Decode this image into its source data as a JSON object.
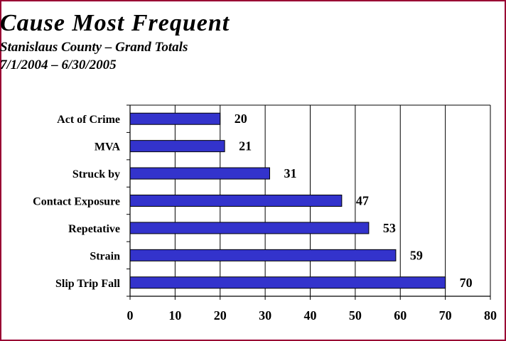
{
  "chart_data": {
    "type": "bar",
    "orientation": "horizontal",
    "title": "Cause Most Frequent",
    "subtitle": "Stanislaus County – Grand Totals",
    "subtitle2": "7/1/2004 – 6/30/2005",
    "categories": [
      "Act of Crime",
      "MVA",
      "Struck by",
      "Contact Exposure",
      "Repetative",
      "Strain",
      "Slip Trip Fall"
    ],
    "values": [
      20,
      21,
      31,
      47,
      53,
      59,
      70
    ],
    "xlim": [
      0,
      80
    ],
    "xticks": [
      0,
      10,
      20,
      30,
      40,
      50,
      60,
      70,
      80
    ],
    "grid": true,
    "legend": "none",
    "bar_color": "#3333cc",
    "frame_color": "#990033"
  }
}
